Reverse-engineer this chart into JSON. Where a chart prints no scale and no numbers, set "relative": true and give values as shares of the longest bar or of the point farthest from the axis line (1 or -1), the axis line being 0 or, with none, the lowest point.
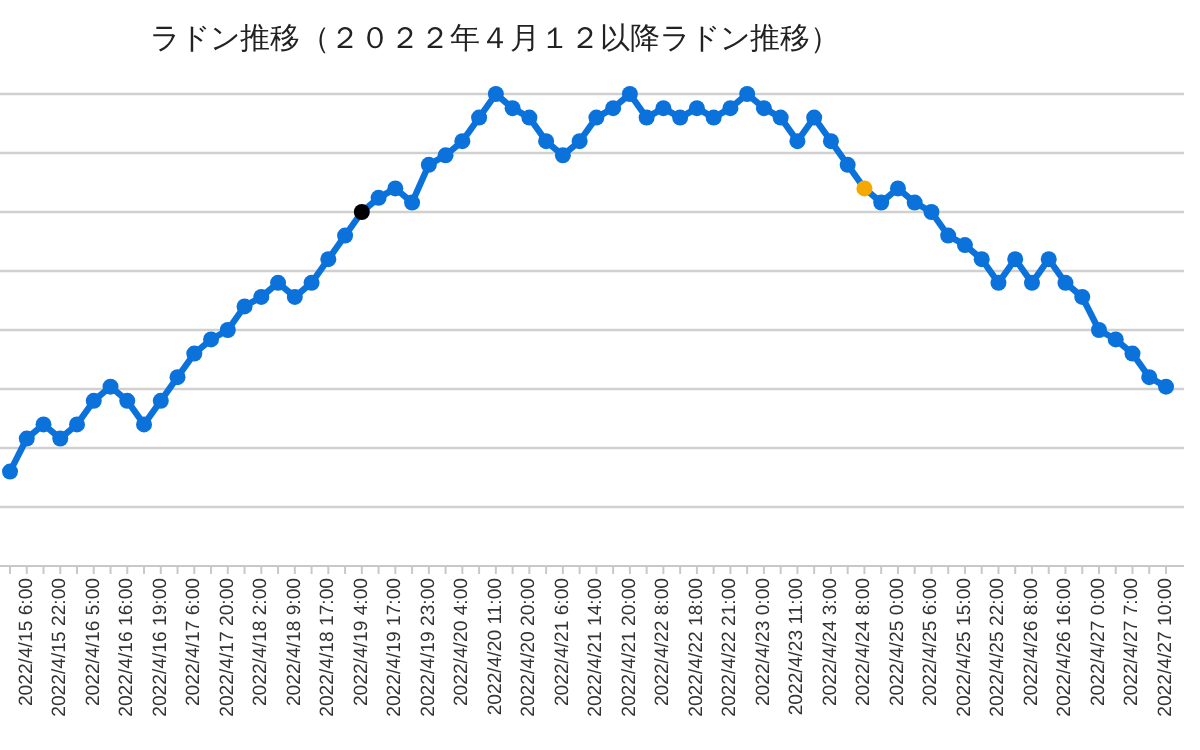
{
  "chart_data": {
    "type": "line",
    "title": "ラドン推移（２０２２年４月１２以降ラドン推移）",
    "relative": true,
    "grid": "y",
    "tick_labels": "x",
    "marker": "circle",
    "line_style": "solid",
    "categories": [
      null,
      "2022/4/15 6:00",
      null,
      "2022/4/15 22:00",
      null,
      "2022/4/16 5:00",
      null,
      "2022/4/16 16:00",
      null,
      "2022/4/16 19:00",
      null,
      "2022/4/17 6:00",
      null,
      "2022/4/17 20:00",
      null,
      "2022/4/18 2:00",
      null,
      "2022/4/18 9:00",
      null,
      "2022/4/18 17:00",
      null,
      "2022/4/19 4:00",
      null,
      "2022/4/19 17:00",
      null,
      "2022/4/19 23:00",
      null,
      "2022/4/20 4:00",
      null,
      "2022/4/20 11:00",
      null,
      "2022/4/20 20:00",
      null,
      "2022/4/21 6:00",
      null,
      "2022/4/21 14:00",
      null,
      "2022/4/21 20:00",
      null,
      "2022/4/22 8:00",
      null,
      "2022/4/22 18:00",
      null,
      "2022/4/22 21:00",
      null,
      "2022/4/23 0:00",
      null,
      "2022/4/23 11:00",
      null,
      "2022/4/24 3:00",
      null,
      "2022/4/24 8:00",
      null,
      "2022/4/25 0:00",
      null,
      "2022/4/25 6:00",
      null,
      "2022/4/25 15:00",
      null,
      "2022/4/25 22:00",
      null,
      "2022/4/26 8:00",
      null,
      "2022/4/26 16:00",
      null,
      "2022/4/27 0:00",
      null,
      "2022/4/27 7:00",
      null,
      "2022/4/27 10:00"
    ],
    "series": [
      {
        "color": "#0b72dc",
        "values": [
          0.2,
          0.27,
          0.3,
          0.27,
          0.3,
          0.35,
          0.38,
          0.35,
          0.3,
          0.35,
          0.4,
          0.45,
          0.48,
          0.5,
          0.55,
          0.57,
          0.6,
          0.57,
          0.6,
          0.65,
          0.7,
          0.75,
          0.78,
          0.8,
          0.77,
          0.85,
          0.87,
          0.9,
          0.95,
          1.0,
          0.97,
          0.95,
          0.9,
          0.87,
          0.9,
          0.95,
          0.97,
          1.0,
          0.95,
          0.97,
          0.95,
          0.97,
          0.95,
          0.97,
          1.0,
          0.97,
          0.95,
          0.9,
          0.95,
          0.9,
          0.85,
          0.8,
          0.77,
          0.8,
          0.77,
          0.75,
          0.7,
          0.68,
          0.65,
          0.6,
          0.65,
          0.6,
          0.65,
          0.6,
          0.57,
          0.5,
          0.48,
          0.45,
          0.4,
          0.38
        ],
        "colors": [
          "#0b72dc",
          "#0b72dc",
          "#0b72dc",
          "#0b72dc",
          "#0b72dc",
          "#0b72dc",
          "#0b72dc",
          "#0b72dc",
          "#0b72dc",
          "#0b72dc",
          "#0b72dc",
          "#0b72dc",
          "#0b72dc",
          "#0b72dc",
          "#0b72dc",
          "#0b72dc",
          "#0b72dc",
          "#0b72dc",
          "#0b72dc",
          "#0b72dc",
          "#0b72dc",
          "#000000",
          "#0b72dc",
          "#0b72dc",
          "#0b72dc",
          "#0b72dc",
          "#0b72dc",
          "#0b72dc",
          "#0b72dc",
          "#0b72dc",
          "#0b72dc",
          "#0b72dc",
          "#0b72dc",
          "#0b72dc",
          "#0b72dc",
          "#0b72dc",
          "#0b72dc",
          "#0b72dc",
          "#0b72dc",
          "#0b72dc",
          "#0b72dc",
          "#0b72dc",
          "#0b72dc",
          "#0b72dc",
          "#0b72dc",
          "#0b72dc",
          "#0b72dc",
          "#0b72dc",
          "#0b72dc",
          "#0b72dc",
          "#0b72dc",
          "#f5a800",
          "#0b72dc",
          "#0b72dc",
          "#0b72dc",
          "#0b72dc",
          "#0b72dc",
          "#0b72dc",
          "#0b72dc",
          "#0b72dc",
          "#0b72dc",
          "#0b72dc",
          "#0b72dc",
          "#0b72dc",
          "#0b72dc",
          "#0b72dc",
          "#0b72dc",
          "#0b72dc",
          "#0b72dc",
          "#0b72dc"
        ]
      }
    ]
  }
}
